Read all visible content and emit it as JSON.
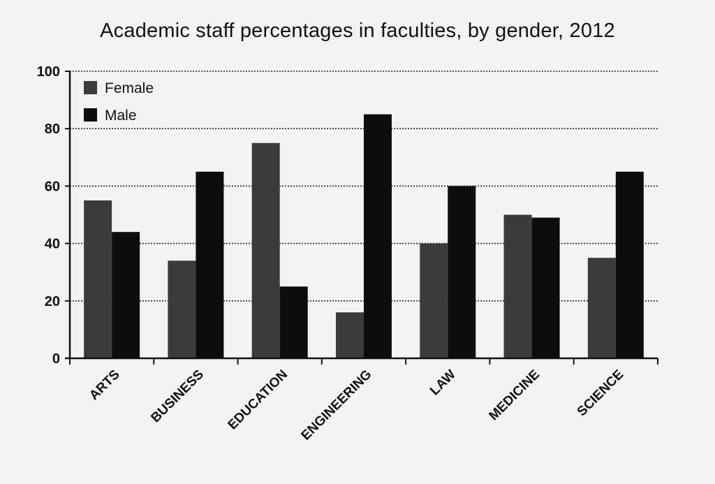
{
  "chart_data": {
    "type": "bar",
    "title": "Academic staff percentages in faculties, by gender, 2012",
    "xlabel": "",
    "ylabel": "",
    "ylim": [
      0,
      100
    ],
    "yticks": [
      0,
      20,
      40,
      60,
      80,
      100
    ],
    "categories": [
      "ARTS",
      "BUSINESS",
      "EDUCATION",
      "ENGINEERING",
      "LAW",
      "MEDICINE",
      "SCIENCE"
    ],
    "series": [
      {
        "name": "Female",
        "color": "#3b3b3b",
        "values": [
          55,
          34,
          75,
          16,
          40,
          50,
          35
        ]
      },
      {
        "name": "Male",
        "color": "#0d0d0d",
        "values": [
          44,
          65,
          25,
          85,
          60,
          49,
          65
        ]
      }
    ],
    "grid": true,
    "legend": "top-left"
  }
}
